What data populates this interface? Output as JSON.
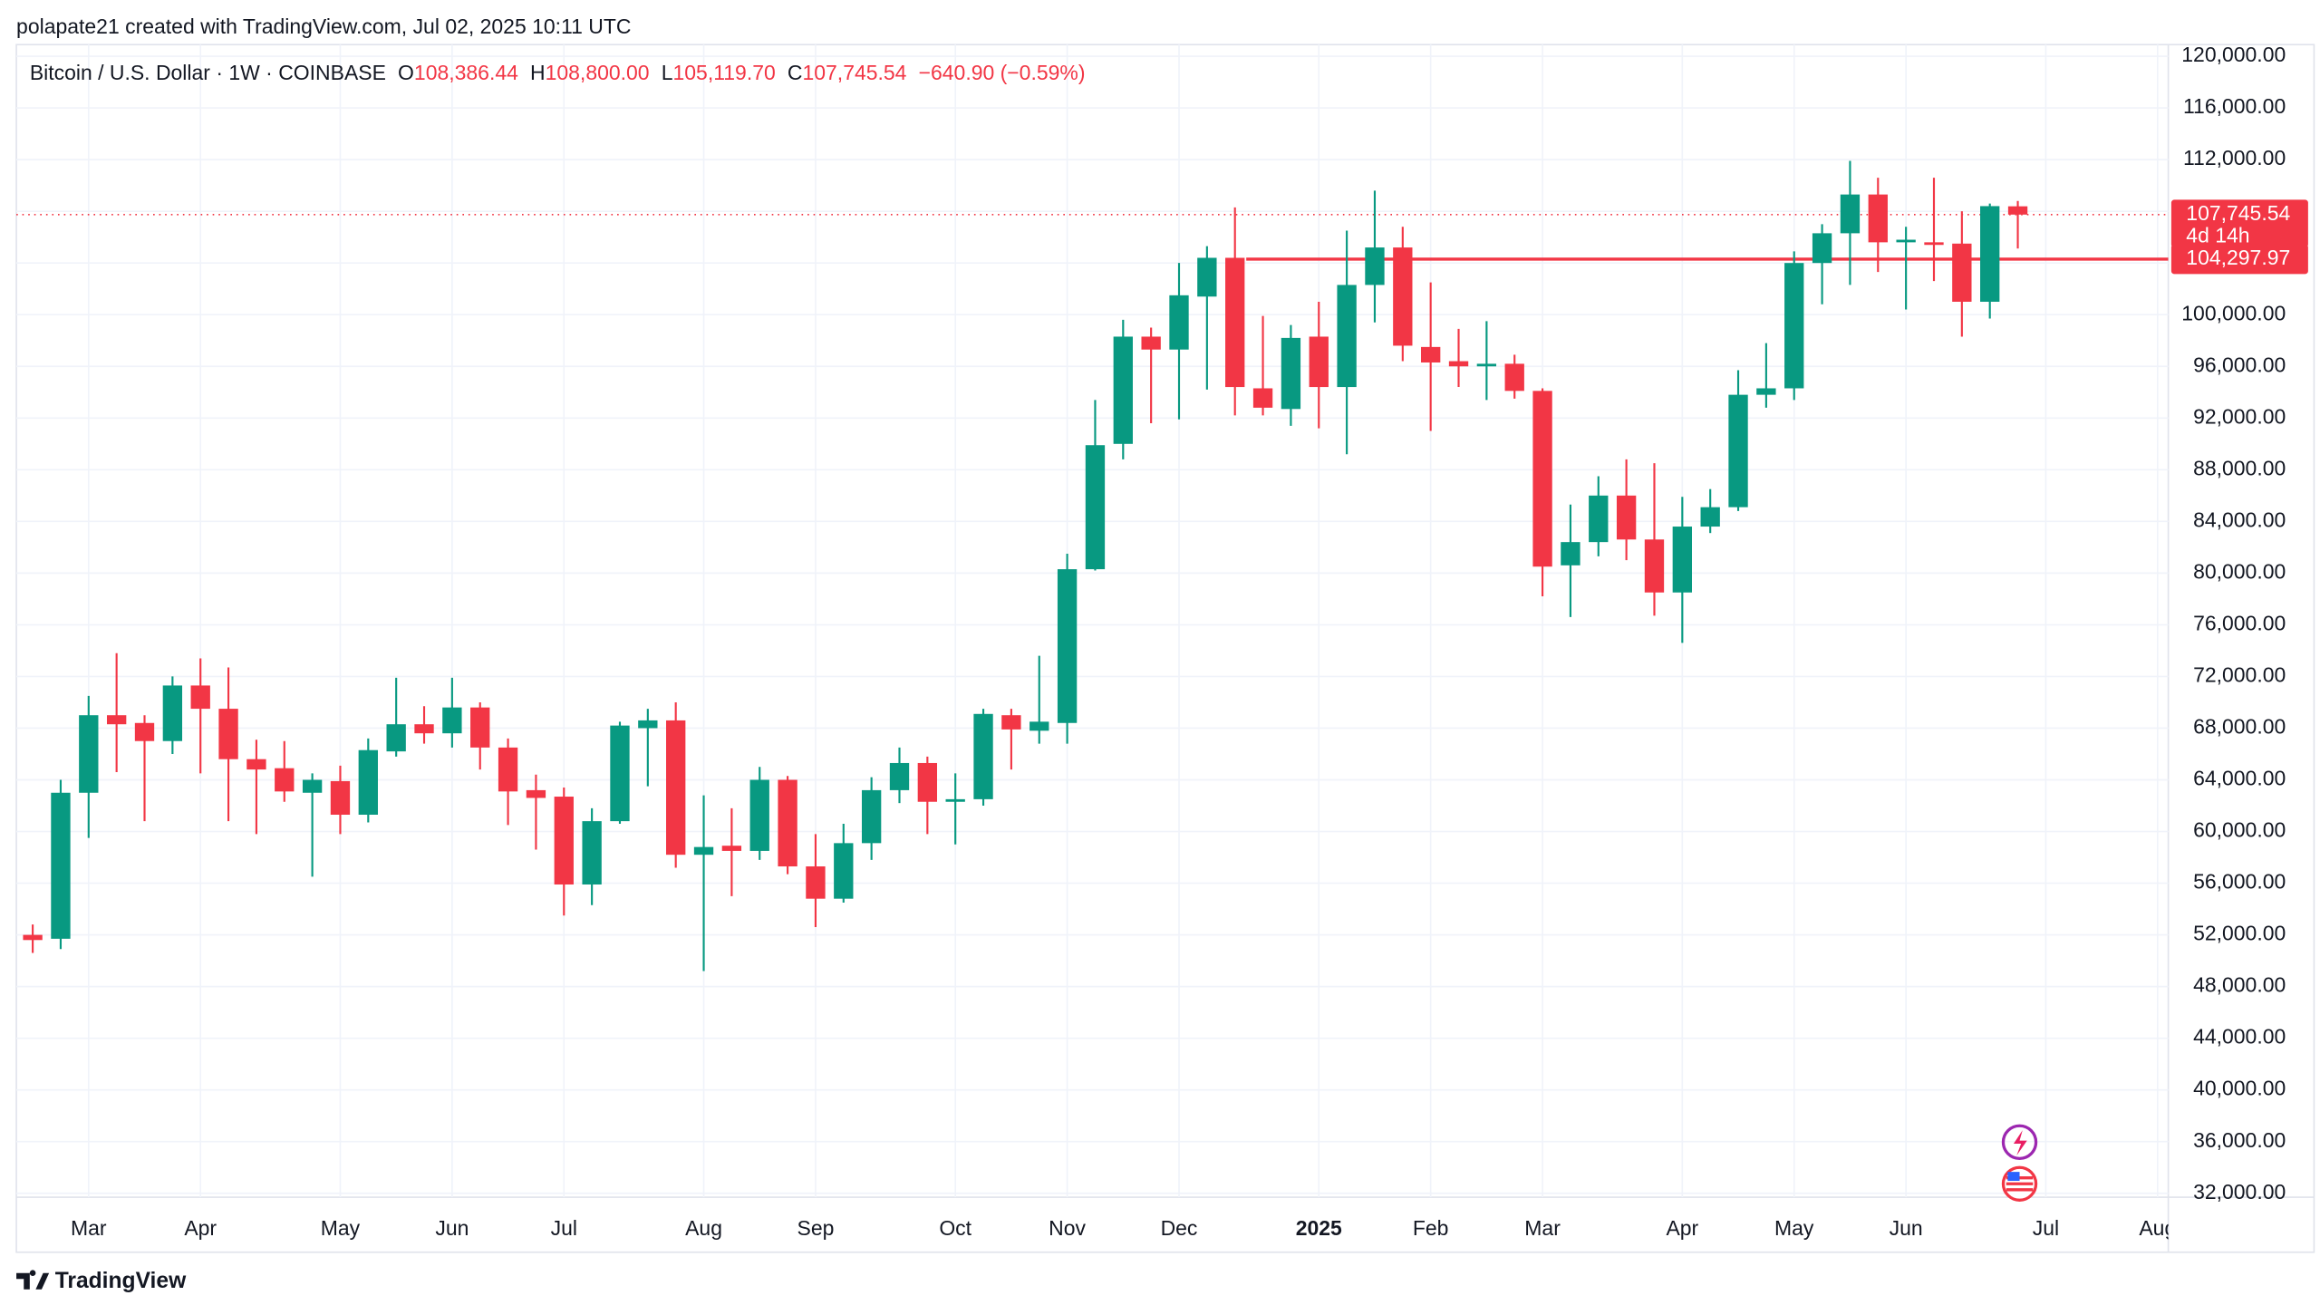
{
  "attribution": "polapate21 created with TradingView.com, Jul 02, 2025 10:11 UTC",
  "brand": "TradingView",
  "chart_data": {
    "type": "candlestick",
    "title": "Bitcoin / U.S. Dollar · 1W · COINBASE",
    "header": [
      {
        "label": "O",
        "value": "108,386.44"
      },
      {
        "label": "H",
        "value": "108,800.00"
      },
      {
        "label": "L",
        "value": "105,119.70"
      },
      {
        "label": "C",
        "value": "107,745.54"
      }
    ],
    "change": "−640.90 (−0.59%)",
    "up_color": "#089981",
    "down_color": "#f23645",
    "categories": [
      null,
      null,
      "Mar",
      null,
      null,
      null,
      "Apr",
      null,
      null,
      null,
      null,
      "May",
      null,
      null,
      null,
      "Jun",
      null,
      null,
      null,
      "Jul",
      null,
      null,
      null,
      null,
      "Aug",
      null,
      null,
      null,
      "Sep",
      null,
      null,
      null,
      null,
      "Oct",
      null,
      null,
      null,
      "Nov",
      null,
      null,
      null,
      "Dec",
      null,
      null,
      null,
      null,
      "2025",
      null,
      null,
      null,
      "Feb",
      null,
      null,
      null,
      "Mar",
      null,
      null,
      null,
      null,
      "Apr",
      null,
      null,
      null,
      "May",
      null,
      null,
      null,
      "Jun",
      null,
      null,
      null,
      null,
      "Jul",
      null,
      null,
      null,
      "Aug"
    ],
    "open": [
      52000,
      51700,
      63000,
      69000,
      68400,
      67000,
      71300,
      69500,
      65600,
      64900,
      63000,
      63900,
      61300,
      66200,
      68300,
      67600,
      69600,
      66500,
      63200,
      62700,
      55900,
      60800,
      68000,
      68600,
      58200,
      58900,
      58500,
      64000,
      57300,
      54800,
      59100,
      63200,
      65300,
      62300,
      62500,
      69000,
      67800,
      68400,
      80300,
      90000,
      98300,
      97300,
      101400,
      104400,
      94300,
      92700,
      98300,
      94400,
      102300,
      105200,
      97500,
      96400,
      96000,
      96200,
      94100,
      80600,
      82400,
      86000,
      82600,
      78500,
      83600,
      85100,
      93800,
      94300,
      104000,
      106300,
      109300,
      105600,
      105600,
      105500,
      101000,
      108386.44,
      null,
      null,
      null,
      null,
      null
    ],
    "high": [
      52800,
      64000,
      70500,
      73800,
      69000,
      72000,
      73400,
      72700,
      67100,
      67000,
      64500,
      65100,
      67200,
      71900,
      69700,
      71900,
      70000,
      67200,
      64400,
      63400,
      61800,
      68500,
      69500,
      70000,
      62800,
      61800,
      65000,
      64300,
      59800,
      60600,
      64200,
      66500,
      65800,
      64500,
      69500,
      69500,
      73600,
      81500,
      93400,
      99600,
      99000,
      104000,
      105300,
      108300,
      99900,
      99200,
      101000,
      106500,
      109600,
      106800,
      102500,
      98900,
      99500,
      96900,
      94300,
      85300,
      87500,
      88800,
      88500,
      85900,
      86500,
      95700,
      97800,
      104900,
      107000,
      111900,
      110600,
      106800,
      110600,
      108000,
      108600,
      108800,
      null,
      null,
      null,
      null,
      null
    ],
    "low": [
      50600,
      50900,
      59500,
      64600,
      60800,
      66000,
      64500,
      60800,
      59800,
      62300,
      56500,
      59800,
      60700,
      65800,
      66800,
      66500,
      64800,
      60500,
      58600,
      53500,
      54300,
      60600,
      63500,
      57200,
      49200,
      55000,
      57800,
      56700,
      52600,
      54500,
      57800,
      62200,
      59800,
      59000,
      62000,
      64800,
      66800,
      66800,
      80200,
      88800,
      91600,
      91900,
      94200,
      92200,
      92200,
      91400,
      91200,
      89200,
      99400,
      96400,
      91000,
      94400,
      93400,
      93500,
      78200,
      76600,
      81300,
      81000,
      76700,
      74600,
      83100,
      84800,
      92800,
      93400,
      100800,
      102300,
      103300,
      100400,
      102600,
      98300,
      99700,
      105119.7,
      null,
      null,
      null,
      null,
      null
    ],
    "close": [
      51600,
      63000,
      69000,
      68300,
      67000,
      71300,
      69500,
      65600,
      64800,
      63100,
      64000,
      61300,
      66300,
      68300,
      67600,
      69600,
      66500,
      63100,
      62600,
      55900,
      60800,
      68200,
      68600,
      58200,
      58800,
      58500,
      64000,
      57300,
      54800,
      59100,
      63200,
      65300,
      62300,
      62500,
      69100,
      67900,
      68500,
      80300,
      89900,
      98300,
      97300,
      101500,
      104400,
      94400,
      92800,
      98200,
      94400,
      102300,
      105200,
      97600,
      96300,
      96000,
      96200,
      94100,
      80500,
      82400,
      86000,
      82600,
      78500,
      83600,
      85100,
      93800,
      94300,
      104000,
      106300,
      109300,
      105600,
      105800,
      105400,
      101000,
      108400,
      107745.54,
      null,
      null,
      null,
      null,
      null
    ],
    "ylim": [
      31700,
      120900
    ],
    "yticks": [
      {
        "value": 120000,
        "label": "120,000.00"
      },
      {
        "value": 116000,
        "label": "116,000.00"
      },
      {
        "value": 112000,
        "label": "112,000.00"
      },
      {
        "value": 108000,
        "label": "108,000.00"
      },
      {
        "value": 104000,
        "label": "104,000.00"
      },
      {
        "value": 100000,
        "label": "100,000.00"
      },
      {
        "value": 96000,
        "label": "96,000.00"
      },
      {
        "value": 92000,
        "label": "92,000.00"
      },
      {
        "value": 88000,
        "label": "88,000.00"
      },
      {
        "value": 84000,
        "label": "84,000.00"
      },
      {
        "value": 80000,
        "label": "80,000.00"
      },
      {
        "value": 76000,
        "label": "76,000.00"
      },
      {
        "value": 72000,
        "label": "72,000.00"
      },
      {
        "value": 68000,
        "label": "68,000.00"
      },
      {
        "value": 64000,
        "label": "64,000.00"
      },
      {
        "value": 60000,
        "label": "60,000.00"
      },
      {
        "value": 56000,
        "label": "56,000.00"
      },
      {
        "value": 52000,
        "label": "52,000.00"
      },
      {
        "value": 48000,
        "label": "48,000.00"
      },
      {
        "value": 44000,
        "label": "44,000.00"
      },
      {
        "value": 40000,
        "label": "40,000.00"
      },
      {
        "value": 36000,
        "label": "36,000.00"
      },
      {
        "value": 32000,
        "label": "32,000.00"
      }
    ],
    "grid": true,
    "price_line": {
      "value": 107745.54,
      "label": "107,745.54",
      "countdown": "4d 14h",
      "color": "#f23645"
    },
    "horizontal_line": {
      "value": 104297.97,
      "label": "104,297.97",
      "color": "#f23645"
    }
  }
}
